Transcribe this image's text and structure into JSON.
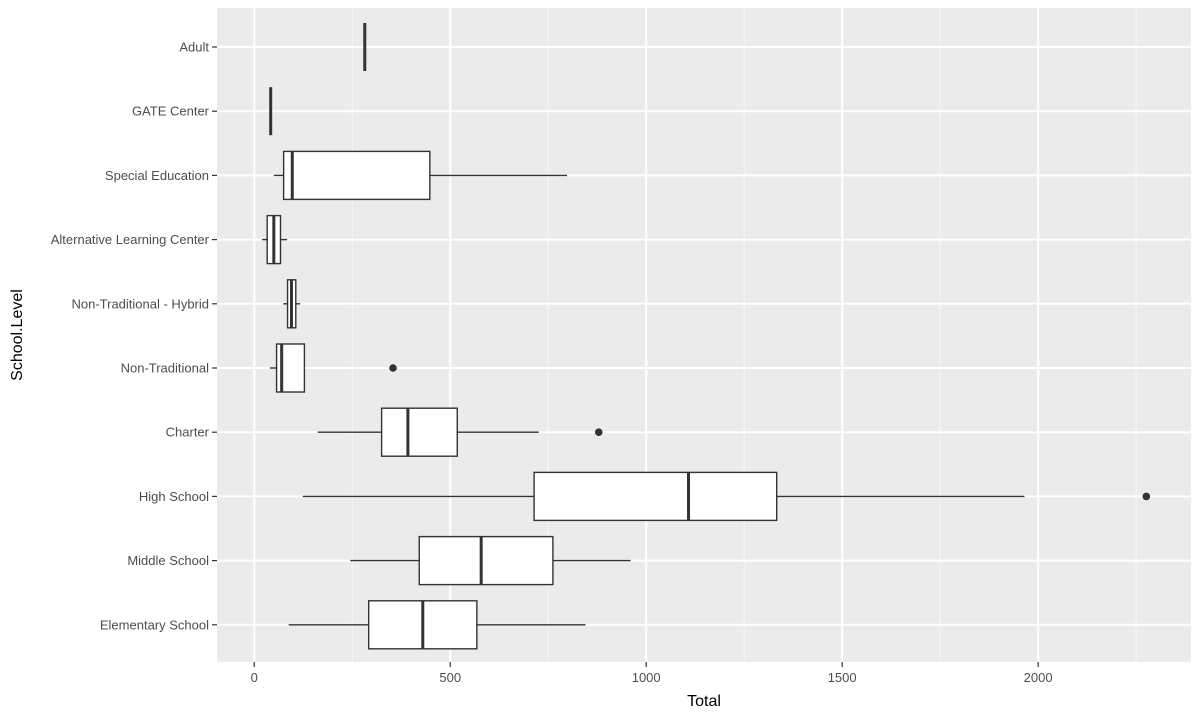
{
  "chart_data": {
    "type": "boxplot",
    "xlabel": "Total",
    "ylabel": "School.Level",
    "xlim": [
      -95,
      2390
    ],
    "x_ticks": [
      0,
      500,
      1000,
      1500,
      2000
    ],
    "x_tick_labels": [
      "0",
      "500",
      "1000",
      "1500",
      "2000"
    ],
    "x_minor_ticks": [
      250,
      750,
      1250,
      1750,
      2250
    ],
    "grid": true,
    "categories": [
      "Adult",
      "GATE Center",
      "Special Education",
      "Alternative Learning Center",
      "Non-Traditional - Hybrid",
      "Non-Traditional",
      "Charter",
      "High School",
      "Middle School",
      "Elementary School"
    ],
    "boxes": [
      {
        "category": "Adult",
        "whisker_low": 282,
        "q1": 282,
        "median": 282,
        "q3": 282,
        "whisker_high": 282,
        "outliers": []
      },
      {
        "category": "GATE Center",
        "whisker_low": 42,
        "q1": 42,
        "median": 42,
        "q3": 42,
        "whisker_high": 42,
        "outliers": []
      },
      {
        "category": "Special Education",
        "whisker_low": 50,
        "q1": 75,
        "median": 97,
        "q3": 448,
        "whisker_high": 798,
        "outliers": []
      },
      {
        "category": "Alternative Learning Center",
        "whisker_low": 20,
        "q1": 33,
        "median": 50,
        "q3": 67,
        "whisker_high": 84,
        "outliers": []
      },
      {
        "category": "Non-Traditional - Hybrid",
        "whisker_low": 74,
        "q1": 85,
        "median": 95,
        "q3": 106,
        "whisker_high": 117,
        "outliers": []
      },
      {
        "category": "Non-Traditional",
        "whisker_low": 40,
        "q1": 57,
        "median": 70,
        "q3": 128,
        "whisker_high": 128,
        "outliers": [
          354
        ]
      },
      {
        "category": "Charter",
        "whisker_low": 162,
        "q1": 325,
        "median": 392,
        "q3": 518,
        "whisker_high": 726,
        "outliers": [
          879
        ]
      },
      {
        "category": "High School",
        "whisker_low": 124,
        "q1": 714,
        "median": 1108,
        "q3": 1333,
        "whisker_high": 1965,
        "outliers": [
          2276
        ]
      },
      {
        "category": "Middle School",
        "whisker_low": 245,
        "q1": 421,
        "median": 579,
        "q3": 762,
        "whisker_high": 960,
        "outliers": []
      },
      {
        "category": "Elementary School",
        "whisker_low": 88,
        "q1": 292,
        "median": 430,
        "q3": 568,
        "whisker_high": 845,
        "outliers": []
      }
    ]
  }
}
